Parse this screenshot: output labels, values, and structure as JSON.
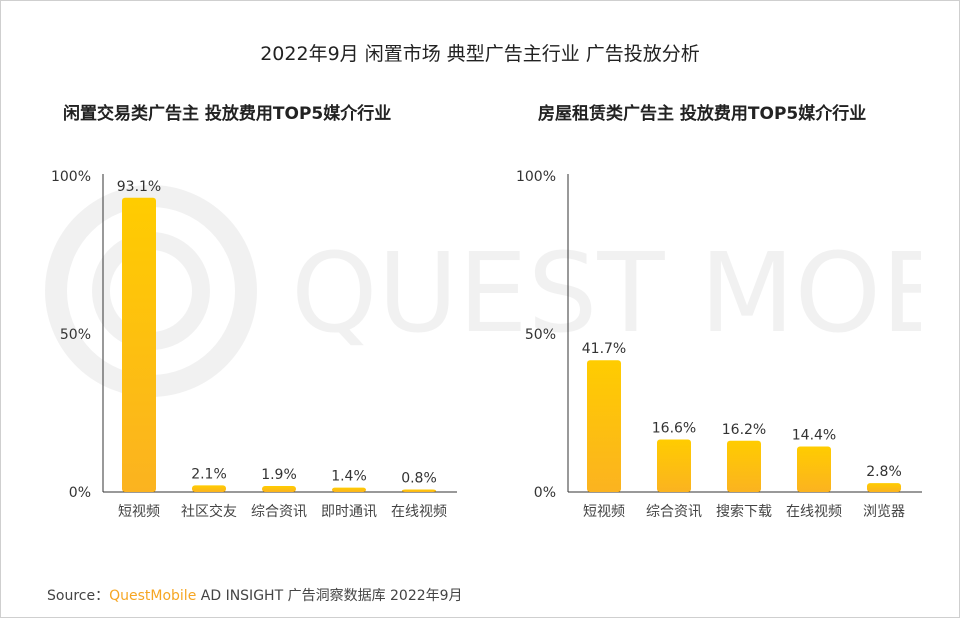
{
  "title": "2022年9月 闲置市场 典型广告主行业 广告投放分析",
  "watermark": "QUEST MOBILE",
  "source": {
    "label": "Source：",
    "brand": "QuestMobile",
    "rest": "AD INSIGHT 广告洞察数据库 2022年9月"
  },
  "colors": {
    "bar_top": "#FFCC00",
    "bar_bottom": "#FBB320"
  },
  "chart_data": [
    {
      "type": "bar",
      "title": "闲置交易类广告主 投放费用TOP5媒介行业",
      "categories": [
        "短视频",
        "社区交友",
        "综合资讯",
        "即时通讯",
        "在线视频"
      ],
      "values": [
        93.1,
        2.1,
        1.9,
        1.4,
        0.8
      ],
      "data_labels": [
        "93.1%",
        "2.1%",
        "1.9%",
        "1.4%",
        "0.8%"
      ],
      "ylim": [
        0,
        100
      ],
      "yticks": [
        "0%",
        "50%",
        "100%"
      ],
      "grid": false
    },
    {
      "type": "bar",
      "title": "房屋租赁类广告主 投放费用TOP5媒介行业",
      "categories": [
        "短视频",
        "综合资讯",
        "搜索下载",
        "在线视频",
        "浏览器"
      ],
      "values": [
        41.7,
        16.6,
        16.2,
        14.4,
        2.8
      ],
      "data_labels": [
        "41.7%",
        "16.6%",
        "16.2%",
        "14.4%",
        "2.8%"
      ],
      "ylim": [
        0,
        100
      ],
      "yticks": [
        "0%",
        "50%",
        "100%"
      ],
      "grid": false
    }
  ]
}
